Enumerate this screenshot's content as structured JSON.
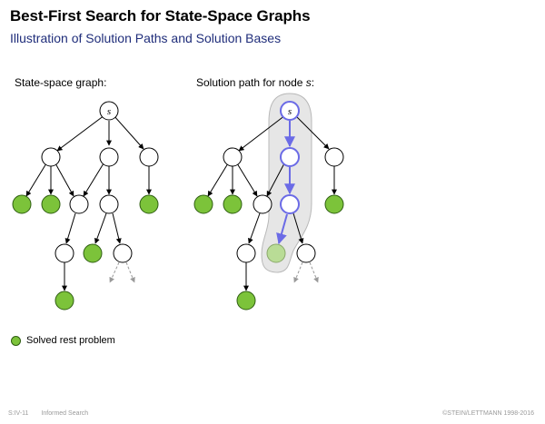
{
  "header": {
    "title": "Best-First Search for State-Space Graphs",
    "subtitle": "Illustration of Solution Paths and Solution Bases"
  },
  "panels": {
    "left_label": "State-space graph:",
    "right_label_prefix": "Solution path for node ",
    "right_label_var": "s",
    "right_label_suffix": ":"
  },
  "graph": {
    "root_label": "s"
  },
  "legend": {
    "label": "Solved rest problem"
  },
  "footer": {
    "code": "S:IV-11",
    "topic": "Informed Search",
    "copyright": "©STEIN/LETTMANN 1998-2016"
  },
  "colors": {
    "solved_fill": "#7cc33a",
    "solved_stroke": "#2f5e12",
    "path_blue": "#6b6be6",
    "path_band": "#e6e6e6",
    "pale_solved": "#b9dc96",
    "title_blue": "#1f2d7a"
  }
}
